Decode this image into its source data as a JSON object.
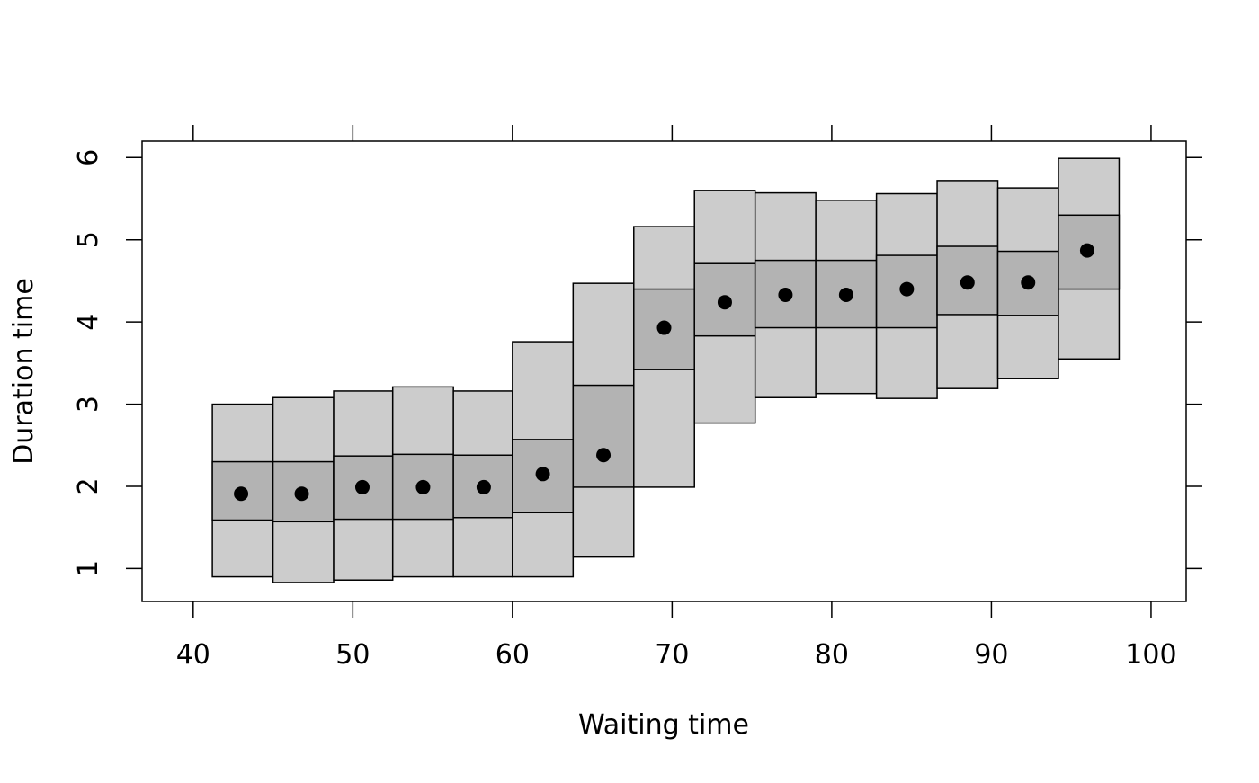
{
  "chart_data": {
    "type": "box",
    "xlabel": "Waiting time",
    "ylabel": "Duration time",
    "xlim": [
      36.8,
      102.2
    ],
    "ylim": [
      0.6,
      6.2
    ],
    "x_ticks": [
      "40",
      "50",
      "60",
      "70",
      "80",
      "90",
      "100"
    ],
    "y_ticks": [
      "1",
      "2",
      "3",
      "4",
      "5",
      "6"
    ],
    "grid": false,
    "colors": {
      "outer_band": "#cccccc",
      "inner_band": "#b3b3b3",
      "point": "#000000",
      "stroke": "#000000"
    },
    "bins": [
      {
        "x0": 41.2,
        "x1": 45.0,
        "center": 43.0,
        "low": 0.9,
        "q1": 1.59,
        "q3": 2.3,
        "high": 3.0,
        "median": 1.91
      },
      {
        "x0": 45.0,
        "x1": 48.8,
        "center": 46.8,
        "low": 0.83,
        "q1": 1.57,
        "q3": 2.3,
        "high": 3.08,
        "median": 1.91
      },
      {
        "x0": 48.8,
        "x1": 52.5,
        "center": 50.6,
        "low": 0.86,
        "q1": 1.6,
        "q3": 2.37,
        "high": 3.16,
        "median": 1.99
      },
      {
        "x0": 52.5,
        "x1": 56.3,
        "center": 54.4,
        "low": 0.9,
        "q1": 1.6,
        "q3": 2.39,
        "high": 3.21,
        "median": 1.99
      },
      {
        "x0": 56.3,
        "x1": 60.0,
        "center": 58.2,
        "low": 0.9,
        "q1": 1.62,
        "q3": 2.38,
        "high": 3.16,
        "median": 1.99
      },
      {
        "x0": 60.0,
        "x1": 63.8,
        "center": 61.9,
        "low": 0.9,
        "q1": 1.68,
        "q3": 2.57,
        "high": 3.76,
        "median": 2.15
      },
      {
        "x0": 63.8,
        "x1": 67.6,
        "center": 65.7,
        "low": 1.14,
        "q1": 1.99,
        "q3": 3.23,
        "high": 4.47,
        "median": 2.38
      },
      {
        "x0": 67.6,
        "x1": 71.4,
        "center": 69.5,
        "low": 1.99,
        "q1": 3.42,
        "q3": 4.4,
        "high": 5.16,
        "median": 3.93
      },
      {
        "x0": 71.4,
        "x1": 75.2,
        "center": 73.3,
        "low": 2.77,
        "q1": 3.83,
        "q3": 4.71,
        "high": 5.6,
        "median": 4.24
      },
      {
        "x0": 75.2,
        "x1": 79.0,
        "center": 77.1,
        "low": 3.08,
        "q1": 3.93,
        "q3": 4.75,
        "high": 5.57,
        "median": 4.33
      },
      {
        "x0": 79.0,
        "x1": 82.8,
        "center": 80.9,
        "low": 3.13,
        "q1": 3.93,
        "q3": 4.75,
        "high": 5.48,
        "median": 4.33
      },
      {
        "x0": 82.8,
        "x1": 86.6,
        "center": 84.7,
        "low": 3.07,
        "q1": 3.93,
        "q3": 4.81,
        "high": 5.56,
        "median": 4.4
      },
      {
        "x0": 86.6,
        "x1": 90.4,
        "center": 88.5,
        "low": 3.19,
        "q1": 4.09,
        "q3": 4.92,
        "high": 5.72,
        "median": 4.48
      },
      {
        "x0": 90.4,
        "x1": 94.2,
        "center": 92.3,
        "low": 3.31,
        "q1": 4.08,
        "q3": 4.86,
        "high": 5.63,
        "median": 4.48
      },
      {
        "x0": 94.2,
        "x1": 98.0,
        "center": 96.0,
        "low": 3.55,
        "q1": 4.4,
        "q3": 5.3,
        "high": 5.99,
        "median": 4.87
      }
    ]
  }
}
